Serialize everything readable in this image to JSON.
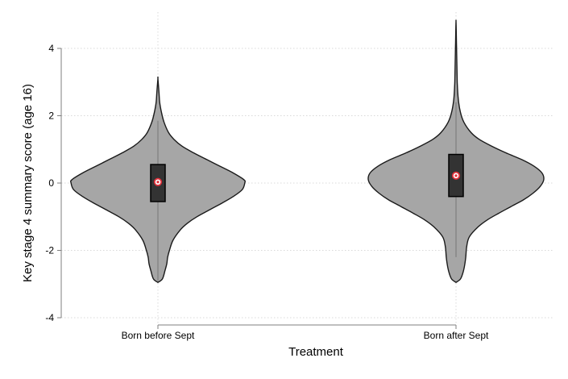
{
  "chart_data": {
    "type": "violin",
    "xlabel": "Treatment",
    "ylabel": "Key stage 4 summary score (age 16)",
    "ylim": [
      -4,
      4
    ],
    "yticks": [
      -4,
      -2,
      0,
      2,
      4
    ],
    "grid": true,
    "categories": [
      "Born before Sept",
      "Born after Sept"
    ],
    "violins": [
      {
        "category": "Born before Sept",
        "median": 0.03,
        "q1": -0.55,
        "q3": 0.55,
        "whisker_low": -2.9,
        "whisker_high": 1.85,
        "min": -2.95,
        "max": 3.1,
        "density_profile": [
          [
            -2.95,
            0.0
          ],
          [
            -2.85,
            0.05
          ],
          [
            -2.6,
            0.08
          ],
          [
            -2.4,
            0.1
          ],
          [
            -2.2,
            0.11
          ],
          [
            -2.0,
            0.13
          ],
          [
            -1.7,
            0.17
          ],
          [
            -1.4,
            0.25
          ],
          [
            -1.2,
            0.33
          ],
          [
            -1.0,
            0.44
          ],
          [
            -0.8,
            0.58
          ],
          [
            -0.6,
            0.72
          ],
          [
            -0.4,
            0.85
          ],
          [
            -0.2,
            0.95
          ],
          [
            0.0,
            0.98
          ],
          [
            0.1,
            0.97
          ],
          [
            0.3,
            0.85
          ],
          [
            0.5,
            0.7
          ],
          [
            0.7,
            0.55
          ],
          [
            0.9,
            0.4
          ],
          [
            1.1,
            0.27
          ],
          [
            1.3,
            0.18
          ],
          [
            1.5,
            0.12
          ],
          [
            1.8,
            0.07
          ],
          [
            2.1,
            0.04
          ],
          [
            2.4,
            0.02
          ],
          [
            2.7,
            0.012
          ],
          [
            3.1,
            0.0
          ]
        ]
      },
      {
        "category": "Born after Sept",
        "median": 0.22,
        "q1": -0.4,
        "q3": 0.85,
        "whisker_low": -2.2,
        "whisker_high": 2.4,
        "min": -2.95,
        "max": 4.8,
        "density_profile": [
          [
            -2.95,
            0.0
          ],
          [
            -2.85,
            0.05
          ],
          [
            -2.65,
            0.08
          ],
          [
            -2.4,
            0.1
          ],
          [
            -2.2,
            0.11
          ],
          [
            -1.9,
            0.12
          ],
          [
            -1.6,
            0.15
          ],
          [
            -1.3,
            0.25
          ],
          [
            -1.1,
            0.35
          ],
          [
            -0.9,
            0.48
          ],
          [
            -0.7,
            0.62
          ],
          [
            -0.5,
            0.76
          ],
          [
            -0.3,
            0.87
          ],
          [
            -0.1,
            0.95
          ],
          [
            0.1,
            0.99
          ],
          [
            0.3,
            0.97
          ],
          [
            0.5,
            0.88
          ],
          [
            0.7,
            0.74
          ],
          [
            0.9,
            0.56
          ],
          [
            1.1,
            0.4
          ],
          [
            1.3,
            0.26
          ],
          [
            1.5,
            0.17
          ],
          [
            1.8,
            0.09
          ],
          [
            2.1,
            0.05
          ],
          [
            2.5,
            0.025
          ],
          [
            3.0,
            0.014
          ],
          [
            3.5,
            0.01
          ],
          [
            4.0,
            0.006
          ],
          [
            4.5,
            0.003
          ],
          [
            4.8,
            0.0
          ]
        ]
      }
    ],
    "colors": {
      "violin_fill": "#a6a6a6",
      "violin_stroke": "#1a1a1a",
      "box_fill": "#333333",
      "whisker": "#7f7f7f",
      "median_marker": "#e0303a",
      "grid": "#d9d9d9",
      "axis": "#7f7f7f"
    }
  }
}
